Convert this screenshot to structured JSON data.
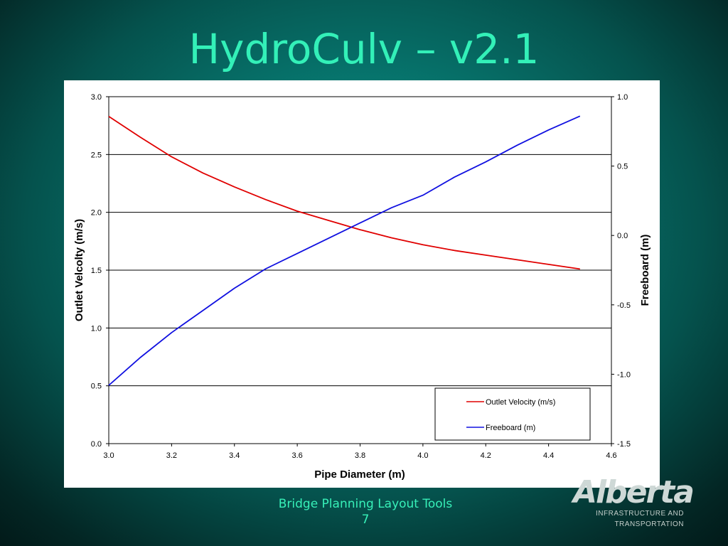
{
  "slide": {
    "title": "HydroCulv – v2.1",
    "footer_text": "Bridge Planning Layout Tools",
    "page_number": "7"
  },
  "logo": {
    "wordmark": "Alberta",
    "line1": "INFRASTRUCTURE AND",
    "line2": "TRANSPORTATION"
  },
  "chart_data": {
    "type": "line",
    "xlabel": "Pipe Diameter (m)",
    "ylabel": "Outlet Velcolty (m/s)",
    "y2label": "Freeboard (m)",
    "xlim": [
      3.0,
      4.6
    ],
    "ylim": [
      0.0,
      3.0
    ],
    "y2lim": [
      -1.5,
      1.0
    ],
    "x_ticks": [
      "3.0",
      "3.2",
      "3.4",
      "3.6",
      "3.8",
      "4.0",
      "4.2",
      "4.4",
      "4.6"
    ],
    "y_ticks": [
      "0.0",
      "0.5",
      "1.0",
      "1.5",
      "2.0",
      "2.5",
      "3.0"
    ],
    "y2_ticks": [
      "-1.5",
      "-1.0",
      "-0.5",
      "0.0",
      "0.5",
      "1.0"
    ],
    "grid": "horizontal",
    "legend_position": "bottom-right",
    "series": [
      {
        "name": "Outlet Velocity (m/s)",
        "axis": "left",
        "color": "#e00000",
        "x": [
          3.0,
          3.1,
          3.2,
          3.3,
          3.4,
          3.5,
          3.6,
          3.7,
          3.8,
          3.9,
          4.0,
          4.1,
          4.2,
          4.3,
          4.4,
          4.5
        ],
        "y": [
          2.83,
          2.65,
          2.48,
          2.34,
          2.22,
          2.11,
          2.01,
          1.93,
          1.85,
          1.78,
          1.72,
          1.67,
          1.63,
          1.59,
          1.55,
          1.51
        ]
      },
      {
        "name": "Freeboard (m)",
        "axis": "right",
        "color": "#1010e0",
        "x": [
          3.0,
          3.1,
          3.2,
          3.3,
          3.4,
          3.5,
          3.6,
          3.7,
          3.8,
          3.9,
          4.0,
          4.1,
          4.2,
          4.3,
          4.4,
          4.5
        ],
        "y": [
          -1.08,
          -0.88,
          -0.7,
          -0.54,
          -0.38,
          -0.24,
          -0.13,
          -0.02,
          0.09,
          0.2,
          0.29,
          0.42,
          0.53,
          0.65,
          0.76,
          0.86
        ]
      }
    ]
  }
}
